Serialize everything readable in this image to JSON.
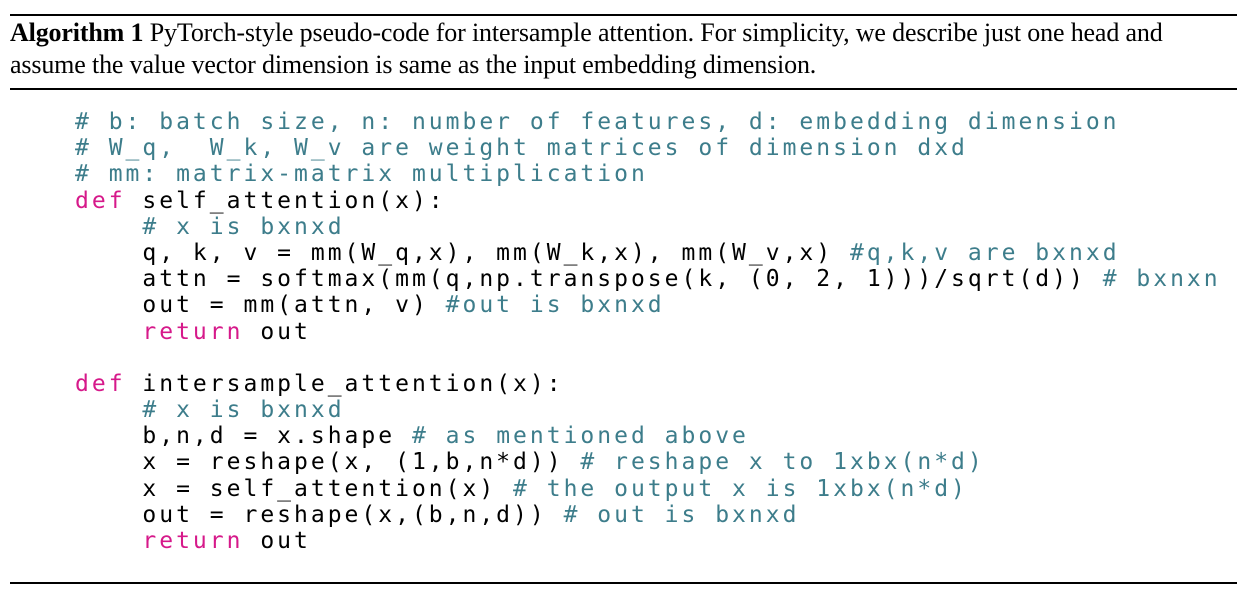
{
  "caption": {
    "label": "Algorithm 1",
    "text": "PyTorch-style pseudo-code for intersample attention. For simplicity, we describe just one head and assume the value vector dimension is same as the input embedding dimension."
  },
  "colors": {
    "comment": "#3d7d8b",
    "keyword": "#d6198a",
    "text": "#000000"
  },
  "code_lines": [
    [
      {
        "t": "cm",
        "s": "# b: batch size, n: number of features, d: embedding dimension"
      }
    ],
    [
      {
        "t": "cm",
        "s": "# W_q,  W_k, W_v are weight matrices of dimension dxd"
      }
    ],
    [
      {
        "t": "cm",
        "s": "# mm: matrix-matrix multiplication"
      }
    ],
    [
      {
        "t": "kw",
        "s": "def"
      },
      {
        "t": "tx",
        "s": " self_attention(x):"
      }
    ],
    [
      {
        "t": "tx",
        "s": "    "
      },
      {
        "t": "cm",
        "s": "# x is bxnxd"
      }
    ],
    [
      {
        "t": "tx",
        "s": "    q, k, v = mm(W_q,x), mm(W_k,x), mm(W_v,x) "
      },
      {
        "t": "cm",
        "s": "#q,k,v are bxnxd"
      }
    ],
    [
      {
        "t": "tx",
        "s": "    attn = softmax(mm(q,np.transpose(k, (0, 2, 1)))/sqrt(d)) "
      },
      {
        "t": "cm",
        "s": "# bxnxn"
      }
    ],
    [
      {
        "t": "tx",
        "s": "    out = mm(attn, v) "
      },
      {
        "t": "cm",
        "s": "#out is bxnxd"
      }
    ],
    [
      {
        "t": "tx",
        "s": "    "
      },
      {
        "t": "kw",
        "s": "return"
      },
      {
        "t": "tx",
        "s": " out"
      }
    ],
    [],
    [
      {
        "t": "kw",
        "s": "def"
      },
      {
        "t": "tx",
        "s": " intersample_attention(x):"
      }
    ],
    [
      {
        "t": "tx",
        "s": "    "
      },
      {
        "t": "cm",
        "s": "# x is bxnxd"
      }
    ],
    [
      {
        "t": "tx",
        "s": "    b,n,d = x.shape "
      },
      {
        "t": "cm",
        "s": "# as mentioned above"
      }
    ],
    [
      {
        "t": "tx",
        "s": "    x = reshape(x, (1,b,n*d)) "
      },
      {
        "t": "cm",
        "s": "# reshape x to 1xbx(n*d)"
      }
    ],
    [
      {
        "t": "tx",
        "s": "    x = self_attention(x) "
      },
      {
        "t": "cm",
        "s": "# the output x is 1xbx(n*d)"
      }
    ],
    [
      {
        "t": "tx",
        "s": "    out = reshape(x,(b,n,d)) "
      },
      {
        "t": "cm",
        "s": "# out is bxnxd"
      }
    ],
    [
      {
        "t": "tx",
        "s": "    "
      },
      {
        "t": "kw",
        "s": "return"
      },
      {
        "t": "tx",
        "s": " out"
      }
    ]
  ]
}
